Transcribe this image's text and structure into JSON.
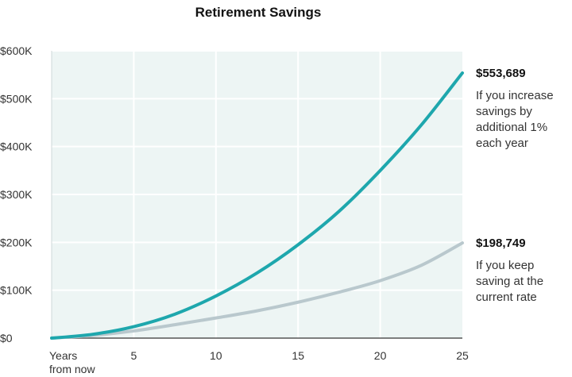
{
  "colors": {
    "plot_background": "#edf5f4",
    "gridline": "#ffffff",
    "increase_series": "#1ea7ad",
    "current_series": "#b9c8cd"
  },
  "chart_data": {
    "type": "line",
    "title": "Retirement Savings",
    "xlabel": "",
    "ylabel": "",
    "x_tick_labels": [
      {
        "value": 0,
        "lines": [
          "Years",
          "from now"
        ]
      },
      {
        "value": 5,
        "lines": [
          "5"
        ]
      },
      {
        "value": 10,
        "lines": [
          "10"
        ]
      },
      {
        "value": 15,
        "lines": [
          "15"
        ]
      },
      {
        "value": 20,
        "lines": [
          "20"
        ]
      },
      {
        "value": 25,
        "lines": [
          "25"
        ]
      }
    ],
    "y_tick_labels": [
      {
        "value": 0,
        "label": "$0"
      },
      {
        "value": 100000,
        "label": "$100K"
      },
      {
        "value": 200000,
        "label": "$200K"
      },
      {
        "value": 300000,
        "label": "$300K"
      },
      {
        "value": 400000,
        "label": "$400K"
      },
      {
        "value": 500000,
        "label": "$500K"
      },
      {
        "value": 600000,
        "label": "$600K"
      }
    ],
    "xlim": [
      0,
      25
    ],
    "ylim": [
      0,
      600000
    ],
    "grid": true,
    "legend": "none",
    "series": [
      {
        "key": "increase",
        "x": [
          0,
          2.5,
          5,
          7.5,
          10,
          12.5,
          15,
          17.5,
          20,
          22.5,
          25
        ],
        "values": [
          0,
          8000,
          24000,
          50000,
          88000,
          136000,
          195000,
          265000,
          350000,
          445000,
          553689
        ],
        "annotation": {
          "value_label": "$553,689",
          "lines": [
            "If you increase",
            "savings by",
            "additional 1%",
            "each year"
          ]
        }
      },
      {
        "key": "current",
        "x": [
          0,
          2.5,
          5,
          7.5,
          10,
          12.5,
          15,
          17.5,
          20,
          22.5,
          25
        ],
        "values": [
          0,
          5500,
          15000,
          28000,
          42000,
          57000,
          75000,
          96000,
          120000,
          152000,
          198749
        ],
        "annotation": {
          "value_label": "$198,749",
          "lines": [
            "If you keep",
            "saving at the",
            "current rate"
          ]
        }
      }
    ]
  }
}
